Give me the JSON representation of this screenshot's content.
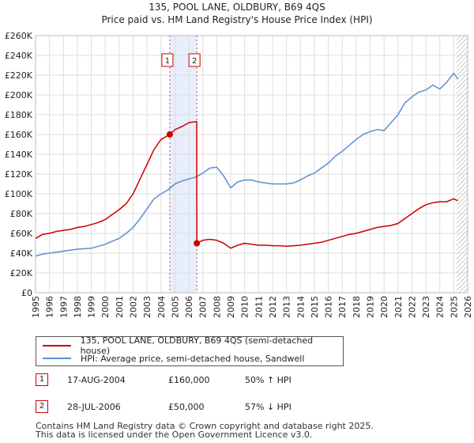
{
  "title": {
    "line1": "135, POOL LANE, OLDBURY, B69 4QS",
    "line2": "Price paid vs. HM Land Registry's House Price Index (HPI)"
  },
  "legend": [
    {
      "label": "135, POOL LANE, OLDBURY, B69 4QS (semi-detached house)",
      "color": "#cc0000"
    },
    {
      "label": "HPI: Average price, semi-detached house, Sandwell",
      "color": "#5b8fd0"
    }
  ],
  "sales": [
    {
      "num": "1",
      "date": "17-AUG-2004",
      "price": "£160,000",
      "hpi": "50% ↑ HPI"
    },
    {
      "num": "2",
      "date": "28-JUL-2006",
      "price": "£50,000",
      "hpi": "57% ↓ HPI"
    }
  ],
  "footer": {
    "line1": "Contains HM Land Registry data © Crown copyright and database right 2025.",
    "line2": "This data is licensed under the Open Government Licence v3.0."
  },
  "chart_data": {
    "type": "line",
    "xlim": [
      1995,
      2026
    ],
    "ylim": [
      0,
      260000
    ],
    "x_ticks": [
      1995,
      1996,
      1997,
      1998,
      1999,
      2000,
      2001,
      2002,
      2003,
      2004,
      2005,
      2006,
      2007,
      2008,
      2009,
      2010,
      2011,
      2012,
      2013,
      2014,
      2015,
      2016,
      2017,
      2018,
      2019,
      2020,
      2021,
      2022,
      2023,
      2024,
      2025,
      2026
    ],
    "y_ticks": [
      {
        "value": 0,
        "label": "£0"
      },
      {
        "value": 20000,
        "label": "£20K"
      },
      {
        "value": 40000,
        "label": "£40K"
      },
      {
        "value": 60000,
        "label": "£60K"
      },
      {
        "value": 80000,
        "label": "£80K"
      },
      {
        "value": 100000,
        "label": "£100K"
      },
      {
        "value": 120000,
        "label": "£120K"
      },
      {
        "value": 140000,
        "label": "£140K"
      },
      {
        "value": 160000,
        "label": "£160K"
      },
      {
        "value": 180000,
        "label": "£180K"
      },
      {
        "value": 200000,
        "label": "£200K"
      },
      {
        "value": 220000,
        "label": "£220K"
      },
      {
        "value": 240000,
        "label": "£240K"
      },
      {
        "value": 260000,
        "label": "£260K"
      }
    ],
    "grid": true,
    "shaded_band": [
      2004.63,
      2006.57
    ],
    "hatched_from": 2025.2,
    "markers": [
      {
        "label": "1",
        "x": 2004.63
      },
      {
        "label": "2",
        "x": 2006.57
      }
    ],
    "sale_points": [
      {
        "x": 2004.63,
        "y": 160000
      },
      {
        "x": 2006.57,
        "y": 50000
      }
    ],
    "series": [
      {
        "name": "135, POOL LANE, OLDBURY, B69 4QS (semi-detached house)",
        "color": "#cc0000",
        "x": [
          1995,
          1995.5,
          1996,
          1996.5,
          1997,
          1997.5,
          1998,
          1998.5,
          1999,
          1999.5,
          2000,
          2000.5,
          2001,
          2001.5,
          2002,
          2002.5,
          2003,
          2003.5,
          2004,
          2004.63,
          2005,
          2005.5,
          2006,
          2006.5,
          2006.56,
          2006.57,
          2007,
          2007.5,
          2008,
          2008.5,
          2009,
          2009.5,
          2010,
          2010.5,
          2011,
          2011.5,
          2012,
          2012.5,
          2013,
          2013.5,
          2014,
          2014.5,
          2015,
          2015.5,
          2016,
          2016.5,
          2017,
          2017.5,
          2018,
          2018.5,
          2019,
          2019.5,
          2020,
          2020.5,
          2021,
          2021.5,
          2022,
          2022.5,
          2023,
          2023.5,
          2024,
          2024.5,
          2025,
          2025.3
        ],
        "values": [
          55000,
          59000,
          60000,
          62000,
          63000,
          64000,
          66000,
          67000,
          69000,
          71000,
          74000,
          79000,
          84000,
          90000,
          100000,
          115000,
          130000,
          145000,
          155000,
          160000,
          165000,
          168000,
          172000,
          173000,
          173000,
          50000,
          53000,
          54000,
          53000,
          50000,
          45000,
          48000,
          50000,
          49000,
          48000,
          48000,
          47500,
          47500,
          47000,
          47500,
          48000,
          49000,
          50000,
          51000,
          53000,
          55000,
          57000,
          59000,
          60000,
          62000,
          64000,
          66000,
          67000,
          68000,
          70000,
          75000,
          80000,
          85000,
          89000,
          91000,
          92000,
          92000,
          95000,
          93000
        ]
      },
      {
        "name": "HPI: Average price, semi-detached house, Sandwell",
        "color": "#5b8fd0",
        "x": [
          1995,
          1995.5,
          1996,
          1996.5,
          1997,
          1997.5,
          1998,
          1998.5,
          1999,
          1999.5,
          2000,
          2000.5,
          2001,
          2001.5,
          2002,
          2002.5,
          2003,
          2003.5,
          2004,
          2004.5,
          2005,
          2005.5,
          2006,
          2006.5,
          2007,
          2007.5,
          2008,
          2008.5,
          2009,
          2009.5,
          2010,
          2010.5,
          2011,
          2011.5,
          2012,
          2012.5,
          2013,
          2013.5,
          2014,
          2014.5,
          2015,
          2015.5,
          2016,
          2016.5,
          2017,
          2017.5,
          2018,
          2018.5,
          2019,
          2019.5,
          2020,
          2020.5,
          2021,
          2021.5,
          2022,
          2022.5,
          2023,
          2023.5,
          2024,
          2024.5,
          2025,
          2025.3
        ],
        "values": [
          37000,
          39000,
          40000,
          41000,
          42000,
          43000,
          44000,
          44500,
          45000,
          47000,
          49000,
          52000,
          55000,
          60000,
          66000,
          75000,
          85000,
          95000,
          100000,
          104000,
          110000,
          113000,
          115000,
          117000,
          121000,
          126000,
          127000,
          118000,
          106000,
          112000,
          114000,
          114000,
          112000,
          111000,
          110000,
          110000,
          110000,
          111000,
          114000,
          118000,
          121000,
          126000,
          131000,
          138000,
          143000,
          149000,
          155000,
          160000,
          163000,
          165000,
          164000,
          172000,
          180000,
          192000,
          198000,
          203000,
          205000,
          210000,
          206000,
          213000,
          222000,
          216000
        ]
      }
    ]
  }
}
